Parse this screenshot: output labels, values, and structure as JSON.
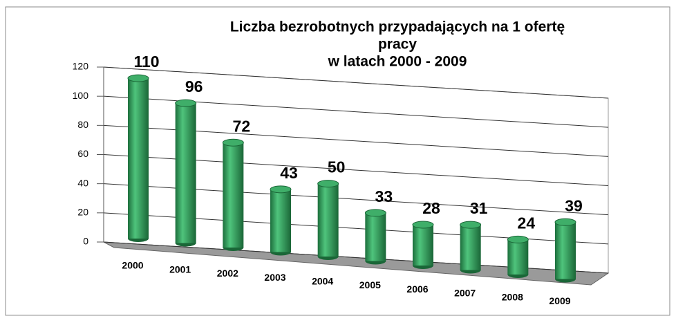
{
  "chart_data": {
    "type": "cylinder-bar",
    "title": [
      "Liczba bezrobotnych przypadających na 1 ofertę",
      "pracy",
      "w latach 2000 - 2009"
    ],
    "categories": [
      "2000",
      "2001",
      "2002",
      "2003",
      "2004",
      "2005",
      "2006",
      "2007",
      "2008",
      "2009"
    ],
    "values": [
      110,
      96,
      72,
      43,
      50,
      33,
      28,
      31,
      24,
      39
    ],
    "color": "#2e9e5b",
    "ylim": [
      0,
      120
    ],
    "yticks": [
      0,
      20,
      40,
      60,
      80,
      100,
      120
    ],
    "grid": true
  }
}
